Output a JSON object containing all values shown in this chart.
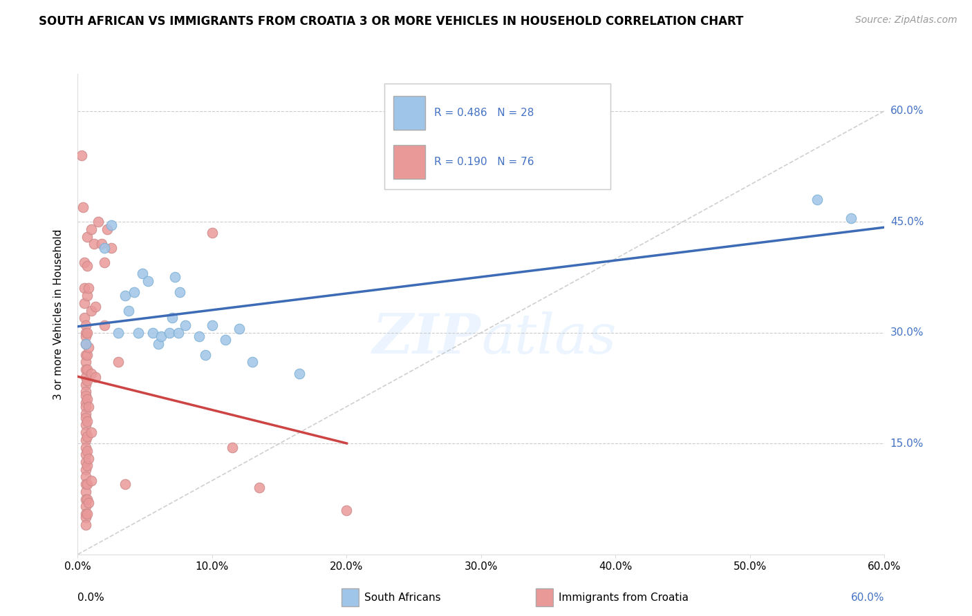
{
  "title": "SOUTH AFRICAN VS IMMIGRANTS FROM CROATIA 3 OR MORE VEHICLES IN HOUSEHOLD CORRELATION CHART",
  "source": "Source: ZipAtlas.com",
  "ylabel": "3 or more Vehicles in Household",
  "legend1_label": "South Africans",
  "legend2_label": "Immigrants from Croatia",
  "r1": 0.486,
  "n1": 28,
  "r2": 0.19,
  "n2": 76,
  "color_blue": "#9fc5e8",
  "color_pink": "#ea9999",
  "color_blue_line": "#3d6bb5",
  "color_pink_line": "#cc4444",
  "color_diag": "#cccccc",
  "watermark": "ZIPatlas",
  "sa_points": [
    [
      0.006,
      0.285
    ],
    [
      0.02,
      0.415
    ],
    [
      0.025,
      0.445
    ],
    [
      0.03,
      0.3
    ],
    [
      0.035,
      0.35
    ],
    [
      0.038,
      0.33
    ],
    [
      0.042,
      0.355
    ],
    [
      0.045,
      0.3
    ],
    [
      0.048,
      0.38
    ],
    [
      0.052,
      0.37
    ],
    [
      0.056,
      0.3
    ],
    [
      0.06,
      0.285
    ],
    [
      0.062,
      0.295
    ],
    [
      0.068,
      0.3
    ],
    [
      0.07,
      0.32
    ],
    [
      0.072,
      0.375
    ],
    [
      0.075,
      0.3
    ],
    [
      0.076,
      0.355
    ],
    [
      0.08,
      0.31
    ],
    [
      0.09,
      0.295
    ],
    [
      0.095,
      0.27
    ],
    [
      0.1,
      0.31
    ],
    [
      0.11,
      0.29
    ],
    [
      0.12,
      0.305
    ],
    [
      0.13,
      0.26
    ],
    [
      0.165,
      0.245
    ],
    [
      0.55,
      0.48
    ],
    [
      0.575,
      0.455
    ]
  ],
  "croatia_points": [
    [
      0.003,
      0.54
    ],
    [
      0.004,
      0.47
    ],
    [
      0.005,
      0.395
    ],
    [
      0.005,
      0.36
    ],
    [
      0.005,
      0.34
    ],
    [
      0.005,
      0.32
    ],
    [
      0.006,
      0.31
    ],
    [
      0.006,
      0.3
    ],
    [
      0.006,
      0.295
    ],
    [
      0.006,
      0.285
    ],
    [
      0.006,
      0.27
    ],
    [
      0.006,
      0.26
    ],
    [
      0.006,
      0.25
    ],
    [
      0.006,
      0.24
    ],
    [
      0.006,
      0.23
    ],
    [
      0.006,
      0.22
    ],
    [
      0.006,
      0.215
    ],
    [
      0.006,
      0.205
    ],
    [
      0.006,
      0.2
    ],
    [
      0.006,
      0.19
    ],
    [
      0.006,
      0.185
    ],
    [
      0.006,
      0.175
    ],
    [
      0.006,
      0.165
    ],
    [
      0.006,
      0.155
    ],
    [
      0.006,
      0.145
    ],
    [
      0.006,
      0.135
    ],
    [
      0.006,
      0.125
    ],
    [
      0.006,
      0.115
    ],
    [
      0.006,
      0.105
    ],
    [
      0.006,
      0.095
    ],
    [
      0.006,
      0.085
    ],
    [
      0.006,
      0.075
    ],
    [
      0.006,
      0.065
    ],
    [
      0.006,
      0.055
    ],
    [
      0.006,
      0.05
    ],
    [
      0.006,
      0.04
    ],
    [
      0.007,
      0.43
    ],
    [
      0.007,
      0.39
    ],
    [
      0.007,
      0.35
    ],
    [
      0.007,
      0.3
    ],
    [
      0.007,
      0.27
    ],
    [
      0.007,
      0.25
    ],
    [
      0.007,
      0.235
    ],
    [
      0.007,
      0.21
    ],
    [
      0.007,
      0.18
    ],
    [
      0.007,
      0.16
    ],
    [
      0.007,
      0.14
    ],
    [
      0.007,
      0.12
    ],
    [
      0.007,
      0.095
    ],
    [
      0.007,
      0.075
    ],
    [
      0.007,
      0.055
    ],
    [
      0.008,
      0.36
    ],
    [
      0.008,
      0.28
    ],
    [
      0.008,
      0.2
    ],
    [
      0.008,
      0.13
    ],
    [
      0.008,
      0.07
    ],
    [
      0.01,
      0.44
    ],
    [
      0.01,
      0.33
    ],
    [
      0.01,
      0.245
    ],
    [
      0.01,
      0.165
    ],
    [
      0.01,
      0.1
    ],
    [
      0.012,
      0.42
    ],
    [
      0.013,
      0.335
    ],
    [
      0.013,
      0.24
    ],
    [
      0.015,
      0.45
    ],
    [
      0.018,
      0.42
    ],
    [
      0.02,
      0.395
    ],
    [
      0.02,
      0.31
    ],
    [
      0.022,
      0.44
    ],
    [
      0.025,
      0.415
    ],
    [
      0.03,
      0.26
    ],
    [
      0.035,
      0.095
    ],
    [
      0.1,
      0.435
    ],
    [
      0.115,
      0.145
    ],
    [
      0.135,
      0.09
    ],
    [
      0.2,
      0.06
    ]
  ],
  "xlim": [
    0.0,
    0.6
  ],
  "ylim": [
    0.0,
    0.65
  ],
  "xticks": [
    0.0,
    0.1,
    0.2,
    0.3,
    0.4,
    0.5,
    0.6
  ],
  "yticks": [
    0.15,
    0.3,
    0.45,
    0.6
  ]
}
